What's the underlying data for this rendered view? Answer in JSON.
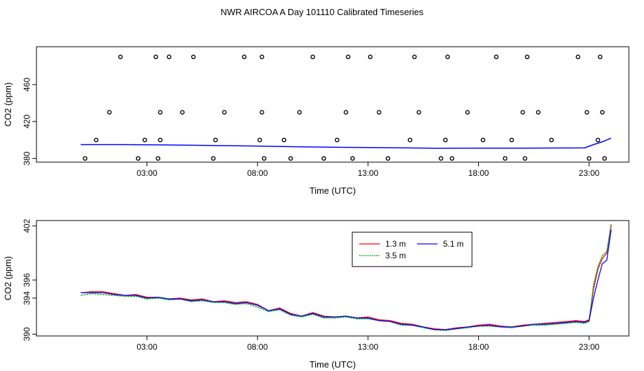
{
  "title": "NWR AIRCOA A  Day 101110  Calibrated Timeseries",
  "chart_data": [
    {
      "type": "line+scatter",
      "xlabel": "Time (UTC)",
      "ylabel": "CO2 (ppm)",
      "xlim": [
        -2,
        24.8
      ],
      "ylim": [
        376,
        501
      ],
      "xticks": [
        3,
        8,
        13,
        18,
        23
      ],
      "xtick_labels": [
        "03:00",
        "08:00",
        "13:00",
        "18:00",
        "23:00"
      ],
      "yticks": [
        380,
        420,
        460
      ],
      "ytick_labels": [
        "380",
        "420",
        "460"
      ],
      "line": {
        "name": "CO2",
        "color": "#0000ff",
        "x": [
          0,
          2,
          4,
          6,
          8,
          10,
          12,
          14,
          16,
          18,
          20,
          22,
          22.8,
          23.2,
          23.6,
          24
        ],
        "y": [
          395,
          395,
          394.6,
          394,
          393.4,
          392.6,
          392,
          391.6,
          391,
          391.2,
          391.2,
          391.3,
          391.5,
          395,
          398,
          402
        ]
      },
      "calibration_points": {
        "x": [
          0.2,
          0.7,
          1.3,
          1.8,
          2.6,
          2.9,
          3.4,
          3.5,
          3.6,
          3.6,
          4.0,
          4.6,
          5.1,
          6.0,
          6.1,
          6.5,
          7.4,
          8.1,
          8.2,
          8.2,
          8.3,
          9.2,
          9.5,
          9.9,
          10.5,
          11.0,
          11.6,
          12.0,
          12.1,
          12.3,
          13.1,
          13.5,
          13.9,
          14.9,
          15.1,
          15.3,
          16.3,
          16.5,
          16.6,
          16.8,
          17.5,
          18.2,
          18.8,
          19.2,
          19.5,
          20.0,
          20.1,
          20.2,
          20.7,
          21.3,
          22.5,
          22.9,
          23.0,
          23.4,
          23.5,
          23.6,
          23.7
        ],
        "y": [
          380,
          400,
          430,
          490,
          380,
          400,
          490,
          380,
          400,
          430,
          490,
          430,
          490,
          380,
          400,
          430,
          490,
          400,
          430,
          490,
          380,
          400,
          380,
          430,
          490,
          380,
          400,
          430,
          490,
          380,
          490,
          430,
          380,
          400,
          490,
          430,
          380,
          400,
          490,
          380,
          430,
          400,
          490,
          380,
          400,
          430,
          380,
          490,
          430,
          400,
          490,
          430,
          380,
          400,
          490,
          430,
          380
        ]
      }
    },
    {
      "type": "line",
      "xlabel": "Time (UTC)",
      "ylabel": "CO2 (ppm)",
      "xlim": [
        -2,
        24.8
      ],
      "ylim": [
        389.8,
        402.6
      ],
      "xticks": [
        3,
        8,
        13,
        18,
        23
      ],
      "xtick_labels": [
        "03:00",
        "08:00",
        "13:00",
        "18:00",
        "23:00"
      ],
      "yticks": [
        390,
        394,
        396,
        402
      ],
      "ytick_labels": [
        "390",
        "394",
        "396",
        "402"
      ],
      "legend_position": "upper-middle",
      "series": [
        {
          "name": "1.3 m",
          "color": "#ff0000",
          "x": [
            0,
            0.5,
            1,
            1.5,
            2,
            2.5,
            3,
            3.5,
            4,
            4.5,
            5,
            5.5,
            6,
            6.5,
            7,
            7.5,
            8,
            8.5,
            9,
            9.5,
            10,
            10.5,
            11,
            11.5,
            12,
            12.5,
            13,
            13.5,
            14,
            14.5,
            15,
            15.5,
            16,
            16.5,
            17,
            17.5,
            18,
            18.5,
            19,
            19.5,
            20,
            20.5,
            21,
            21.5,
            22,
            22.4,
            22.8,
            23,
            23.2,
            23.4,
            23.6,
            23.8,
            24
          ],
          "y": [
            394.6,
            394.7,
            394.7,
            394.5,
            394.3,
            394.4,
            394.1,
            394.1,
            393.9,
            394.0,
            393.8,
            393.9,
            393.6,
            393.7,
            393.5,
            393.6,
            393.3,
            392.6,
            392.9,
            392.3,
            392.0,
            392.4,
            392.0,
            391.9,
            392.0,
            391.8,
            391.9,
            391.6,
            391.5,
            391.2,
            391.1,
            390.8,
            390.6,
            390.5,
            390.7,
            390.8,
            391.0,
            391.1,
            390.9,
            390.8,
            391.0,
            391.1,
            391.2,
            391.3,
            391.4,
            391.5,
            391.4,
            391.6,
            395.0,
            397.2,
            398.4,
            399.0,
            402.2
          ]
        },
        {
          "name": "3.5 m",
          "color": "#00aa00",
          "x": [
            0,
            0.5,
            1,
            1.5,
            2,
            2.5,
            3,
            3.5,
            4,
            4.5,
            5,
            5.5,
            6,
            6.5,
            7,
            7.5,
            8,
            8.5,
            9,
            9.5,
            10,
            10.5,
            11,
            11.5,
            12,
            12.5,
            13,
            13.5,
            14,
            14.5,
            15,
            15.5,
            16,
            16.5,
            17,
            17.5,
            18,
            18.5,
            19,
            19.5,
            20,
            20.5,
            21,
            21.5,
            22,
            22.4,
            22.8,
            23,
            23.2,
            23.4,
            23.6,
            23.8,
            24
          ],
          "y": [
            394.3,
            394.5,
            394.4,
            394.3,
            394.2,
            394.2,
            393.9,
            394.0,
            393.8,
            393.9,
            393.6,
            393.7,
            393.5,
            393.5,
            393.3,
            393.4,
            393.0,
            392.5,
            392.7,
            392.1,
            391.9,
            392.2,
            391.8,
            391.8,
            391.9,
            391.7,
            391.7,
            391.5,
            391.4,
            391.0,
            391.0,
            390.7,
            390.5,
            390.4,
            390.6,
            390.7,
            390.9,
            390.9,
            390.8,
            390.7,
            390.9,
            391.0,
            391.0,
            391.1,
            391.2,
            391.3,
            391.2,
            391.4,
            395.5,
            397.5,
            398.7,
            399.2,
            402.0
          ]
        },
        {
          "name": "5.1 m",
          "color": "#0000ff",
          "x": [
            0,
            0.5,
            1,
            1.5,
            2,
            2.5,
            3,
            3.5,
            4,
            4.5,
            5,
            5.5,
            6,
            6.5,
            7,
            7.5,
            8,
            8.5,
            9,
            9.5,
            10,
            10.5,
            11,
            11.5,
            12,
            12.5,
            13,
            13.5,
            14,
            14.5,
            15,
            15.5,
            16,
            16.5,
            17,
            17.5,
            18,
            18.5,
            19,
            19.5,
            20,
            20.5,
            21,
            21.5,
            22,
            22.4,
            22.8,
            23,
            23.2,
            23.4,
            23.6,
            23.8,
            24
          ],
          "y": [
            394.6,
            394.6,
            394.6,
            394.4,
            394.3,
            394.3,
            394.0,
            394.1,
            393.9,
            393.9,
            393.7,
            393.8,
            393.6,
            393.6,
            393.4,
            393.5,
            393.2,
            392.6,
            392.8,
            392.2,
            392.0,
            392.3,
            391.9,
            391.9,
            392.0,
            391.8,
            391.8,
            391.5,
            391.4,
            391.1,
            391.0,
            390.8,
            390.5,
            390.5,
            390.6,
            390.8,
            390.9,
            391.0,
            390.8,
            390.8,
            390.9,
            391.1,
            391.1,
            391.2,
            391.3,
            391.4,
            391.3,
            391.5,
            394.0,
            396.0,
            397.8,
            398.2,
            401.6
          ]
        }
      ]
    }
  ]
}
